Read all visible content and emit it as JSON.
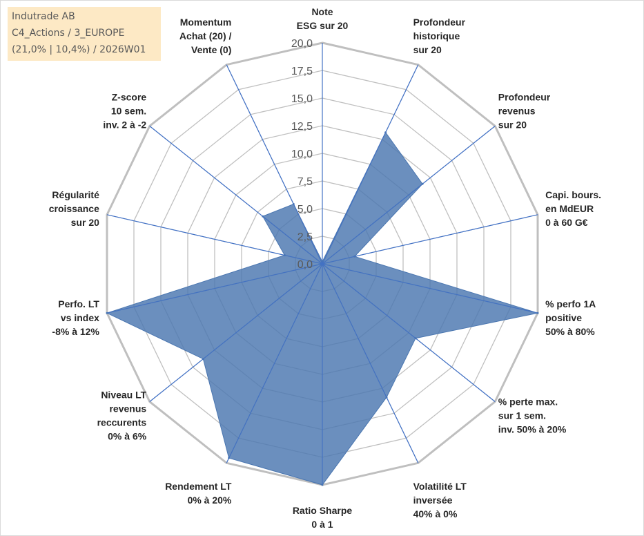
{
  "info_box": {
    "line1": "Indutrade AB",
    "line2": "C4_Actions / 3_EUROPE",
    "line3": "(21,0% | 10,4%) / 2026W01"
  },
  "chart_data": {
    "type": "radar",
    "rmin": 0,
    "rmax": 20,
    "tick_values": [
      0,
      2.5,
      5,
      7.5,
      10,
      12.5,
      15,
      17.5,
      20
    ],
    "tick_labels": [
      "0,0",
      "2,5",
      "5,0",
      "7,5",
      "10,0",
      "12,5",
      "15,0",
      "17,5",
      "20,0"
    ],
    "grid": true,
    "fill_color": "#4a76b0",
    "axis_color": "#4472c4",
    "grid_color": "#bfbfbf",
    "axes": [
      {
        "lines": [
          "Note",
          "ESG sur 20"
        ]
      },
      {
        "lines": [
          "Profondeur",
          "historique",
          "sur 20"
        ]
      },
      {
        "lines": [
          "Profondeur",
          "revenus",
          "sur 20"
        ]
      },
      {
        "lines": [
          "Capi. bours.",
          "en MdEUR",
          "0 à 60 G€"
        ]
      },
      {
        "lines": [
          "% perfo 1A",
          "positive",
          "50% à 80%"
        ]
      },
      {
        "lines": [
          "% perte max.",
          "sur 1 sem.",
          "inv. 50% à 20%"
        ]
      },
      {
        "lines": [
          "Volatilité LT",
          "inversée",
          "40% à 0%"
        ]
      },
      {
        "lines": [
          "Ratio Sharpe",
          "0 à 1"
        ]
      },
      {
        "lines": [
          "Rendement LT",
          "0% à 20%"
        ]
      },
      {
        "lines": [
          "Niveau LT",
          "revenus",
          "reccurents",
          "0% à 6%"
        ]
      },
      {
        "lines": [
          "Perfo. LT",
          "vs index",
          "-8% à 12%"
        ]
      },
      {
        "lines": [
          "Régularité",
          "croissance",
          "sur 20"
        ]
      },
      {
        "lines": [
          "Z-score",
          "10 sem.",
          "inv. 2 à -2"
        ]
      },
      {
        "lines": [
          "Momentum",
          "Achat (20) /",
          "Vente (0)"
        ]
      }
    ],
    "series": [
      {
        "values": [
          0.2,
          13.2,
          11.6,
          3.0,
          20.0,
          10.8,
          13.4,
          20.0,
          19.5,
          13.8,
          20.0,
          3.5,
          6.9,
          6.0
        ]
      }
    ]
  }
}
